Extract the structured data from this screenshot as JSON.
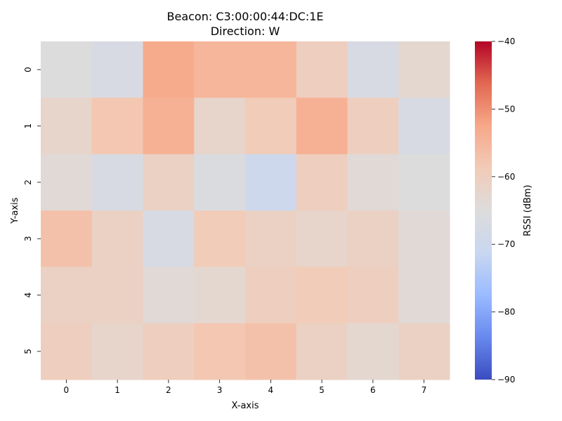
{
  "chart_data": {
    "type": "heatmap",
    "title": "Beacon: C3:00:00:44:DC:1E",
    "subtitle": "Direction: W",
    "xlabel": "X-axis",
    "ylabel": "Y-axis",
    "x_categories": [
      "0",
      "1",
      "2",
      "3",
      "4",
      "5",
      "6",
      "7"
    ],
    "y_categories": [
      "0",
      "1",
      "2",
      "3",
      "4",
      "5"
    ],
    "values": [
      [
        -65,
        -67,
        -53,
        -55,
        -55,
        -60,
        -67,
        -63
      ],
      [
        -62,
        -58,
        -54,
        -62,
        -59,
        -54,
        -60,
        -67
      ],
      [
        -64,
        -67,
        -61,
        -66,
        -70,
        -60,
        -64,
        -65
      ],
      [
        -57,
        -61,
        -67,
        -59,
        -61,
        -62,
        -61,
        -64
      ],
      [
        -61,
        -61,
        -64,
        -63,
        -60,
        -59,
        -60,
        -64
      ],
      [
        -60,
        -62,
        -60,
        -58,
        -57,
        -61,
        -63,
        -61
      ]
    ],
    "colorbar": {
      "label": "RSSI (dBm)",
      "range": [
        -90,
        -40
      ],
      "ticks": [
        "−40",
        "−50",
        "−60",
        "−70",
        "−80",
        "−90"
      ],
      "tick_values": [
        -40,
        -50,
        -60,
        -70,
        -80,
        -90
      ],
      "colormap": "coolwarm",
      "colors": [
        "#3b4cc0",
        "#6889ee",
        "#9abbff",
        "#c9d7f0",
        "#dddcdc",
        "#f2cbb7",
        "#f7a889",
        "#e26952",
        "#b40426"
      ]
    }
  }
}
